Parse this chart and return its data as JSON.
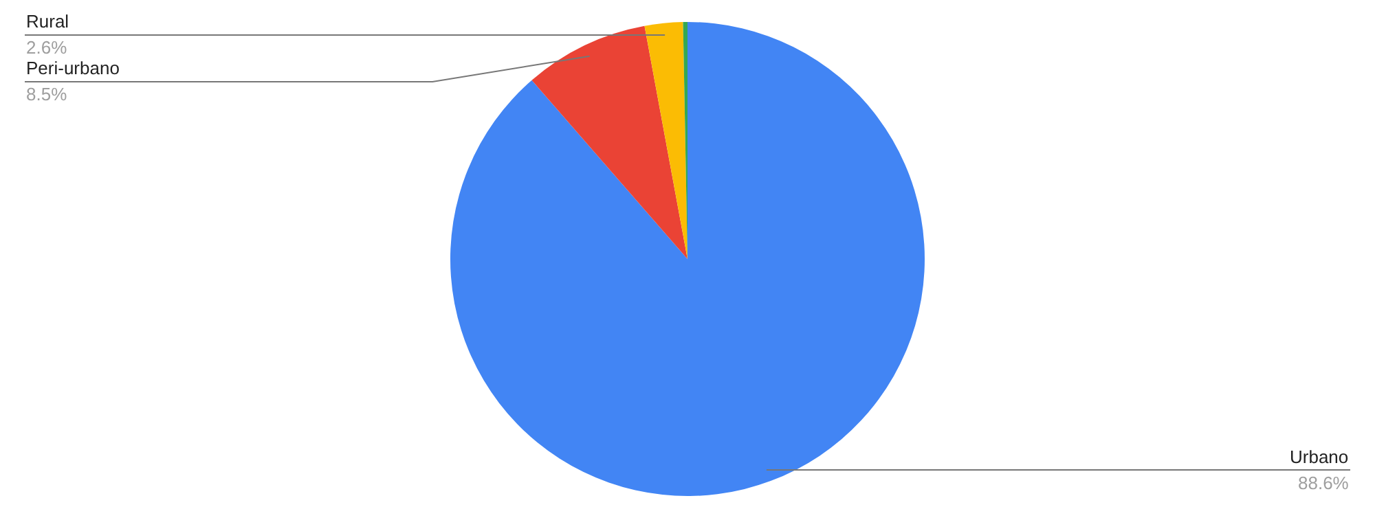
{
  "chart_data": {
    "type": "pie",
    "categories": [
      "Urbano",
      "Peri-urbano",
      "Rural",
      null
    ],
    "values": [
      88.6,
      8.5,
      2.6,
      0.3
    ],
    "value_labels": [
      "88.6%",
      "8.5%",
      "2.6%",
      null
    ],
    "colors": [
      "#4285f4",
      "#ea4335",
      "#fbbc04",
      "#34a853"
    ],
    "legend": false
  }
}
